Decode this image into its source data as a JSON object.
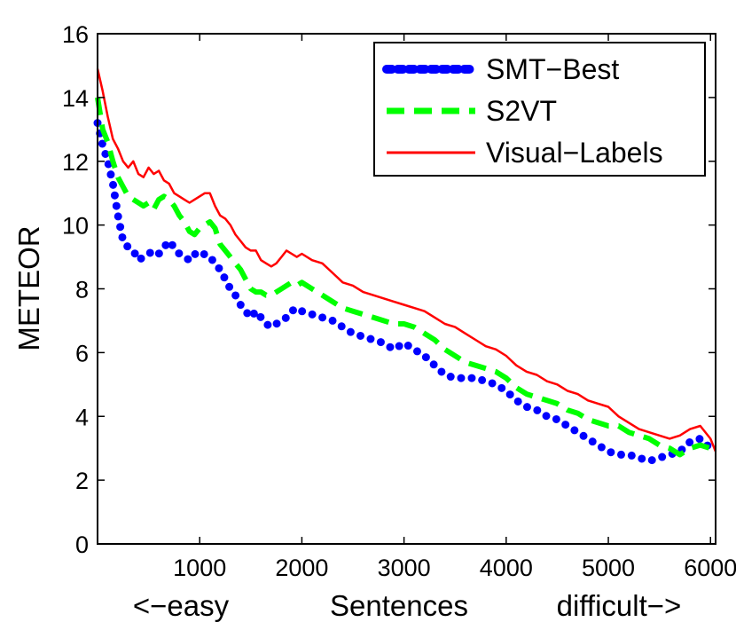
{
  "chart_data": {
    "type": "line",
    "xlabel": "Sentences",
    "xlabel_left": "<−easy",
    "xlabel_right": "difficult−>",
    "ylabel": "METEOR",
    "xlim": [
      0,
      6050
    ],
    "ylim": [
      0,
      16
    ],
    "xticks": [
      1000,
      2000,
      3000,
      4000,
      5000,
      6000
    ],
    "xtick_labels": [
      "1000",
      "2000",
      "3000",
      "4000",
      "5000",
      "6000"
    ],
    "yticks": [
      0,
      2,
      4,
      6,
      8,
      10,
      12,
      14,
      16
    ],
    "ytick_labels": [
      "0",
      "2",
      "4",
      "6",
      "8",
      "10",
      "12",
      "14",
      "16"
    ],
    "grid": false,
    "legend_position": "top-right",
    "series": [
      {
        "name": "SMT−Best",
        "color": "#0000ff",
        "style": "dotted",
        "x": [
          0,
          50,
          100,
          150,
          200,
          250,
          300,
          350,
          400,
          450,
          500,
          550,
          600,
          650,
          700,
          750,
          800,
          850,
          900,
          950,
          1000,
          1050,
          1100,
          1150,
          1200,
          1250,
          1300,
          1350,
          1400,
          1450,
          1500,
          1550,
          1600,
          1650,
          1700,
          1750,
          1800,
          1850,
          1900,
          1950,
          2000,
          2100,
          2200,
          2300,
          2400,
          2500,
          2600,
          2700,
          2800,
          2900,
          3000,
          3100,
          3200,
          3300,
          3400,
          3500,
          3600,
          3700,
          3800,
          3900,
          4000,
          4100,
          4200,
          4300,
          4400,
          4500,
          4600,
          4700,
          4800,
          4900,
          5000,
          5100,
          5200,
          5300,
          5400,
          5500,
          5600,
          5700,
          5800,
          5900,
          6000,
          6050
        ],
        "y": [
          13.2,
          12.5,
          12.0,
          11.3,
          10.3,
          9.5,
          9.3,
          9.2,
          8.9,
          9.0,
          9.1,
          9.2,
          9.1,
          9.3,
          9.5,
          9.3,
          9.1,
          9.0,
          8.9,
          9.1,
          9.0,
          9.1,
          9.0,
          8.8,
          8.6,
          8.3,
          8.0,
          7.8,
          7.5,
          7.3,
          7.1,
          7.3,
          7.1,
          6.9,
          6.8,
          6.9,
          7.0,
          7.1,
          7.3,
          7.4,
          7.3,
          7.2,
          7.1,
          7.0,
          6.8,
          6.6,
          6.5,
          6.4,
          6.3,
          6.1,
          6.3,
          6.1,
          5.9,
          5.6,
          5.3,
          5.2,
          5.2,
          5.2,
          5.1,
          5.0,
          4.8,
          4.5,
          4.3,
          4.2,
          4.0,
          3.9,
          3.7,
          3.5,
          3.3,
          3.1,
          2.9,
          2.8,
          2.8,
          2.7,
          2.6,
          2.7,
          2.8,
          2.9,
          3.2,
          3.3,
          3.0,
          2.9
        ]
      },
      {
        "name": "S2VT",
        "color": "#00ff00",
        "style": "dashed",
        "x": [
          0,
          50,
          100,
          150,
          200,
          250,
          300,
          350,
          400,
          450,
          500,
          550,
          600,
          650,
          700,
          750,
          800,
          850,
          900,
          950,
          1000,
          1050,
          1100,
          1150,
          1200,
          1250,
          1300,
          1350,
          1400,
          1450,
          1500,
          1550,
          1600,
          1650,
          1700,
          1750,
          1800,
          1850,
          1900,
          1950,
          2000,
          2100,
          2200,
          2300,
          2400,
          2500,
          2600,
          2700,
          2800,
          2900,
          3000,
          3100,
          3200,
          3300,
          3400,
          3500,
          3600,
          3700,
          3800,
          3900,
          4000,
          4100,
          4200,
          4300,
          4400,
          4500,
          4600,
          4700,
          4800,
          4900,
          5000,
          5100,
          5200,
          5300,
          5400,
          5500,
          5600,
          5700,
          5800,
          5900,
          6000,
          6050
        ],
        "y": [
          14.0,
          13.0,
          12.6,
          12.0,
          11.5,
          11.2,
          10.9,
          10.8,
          10.7,
          10.6,
          10.7,
          10.5,
          10.8,
          10.9,
          10.8,
          10.6,
          10.3,
          10.1,
          9.8,
          9.7,
          9.9,
          10.0,
          10.1,
          9.9,
          9.4,
          9.2,
          9.0,
          8.8,
          8.6,
          8.3,
          8.0,
          7.9,
          7.9,
          7.8,
          7.8,
          7.9,
          8.0,
          8.1,
          8.2,
          8.1,
          8.2,
          8.0,
          7.8,
          7.6,
          7.4,
          7.3,
          7.2,
          7.1,
          7.0,
          6.9,
          6.9,
          6.8,
          6.6,
          6.4,
          6.1,
          5.9,
          5.7,
          5.6,
          5.5,
          5.4,
          5.2,
          4.9,
          4.7,
          4.6,
          4.5,
          4.4,
          4.2,
          4.1,
          3.9,
          3.8,
          3.7,
          3.7,
          3.5,
          3.4,
          3.3,
          3.1,
          3.0,
          2.8,
          3.0,
          3.1,
          3.0,
          2.9
        ]
      },
      {
        "name": "Visual−Labels",
        "color": "#ff0000",
        "style": "solid",
        "x": [
          0,
          50,
          100,
          150,
          200,
          250,
          300,
          350,
          400,
          450,
          500,
          550,
          600,
          650,
          700,
          750,
          800,
          850,
          900,
          950,
          1000,
          1050,
          1100,
          1150,
          1200,
          1250,
          1300,
          1350,
          1400,
          1450,
          1500,
          1550,
          1600,
          1650,
          1700,
          1750,
          1800,
          1850,
          1900,
          1950,
          2000,
          2100,
          2200,
          2300,
          2400,
          2500,
          2600,
          2700,
          2800,
          2900,
          3000,
          3100,
          3200,
          3300,
          3400,
          3500,
          3600,
          3700,
          3800,
          3900,
          4000,
          4100,
          4200,
          4300,
          4400,
          4500,
          4600,
          4700,
          4800,
          4900,
          5000,
          5100,
          5200,
          5300,
          5400,
          5500,
          5600,
          5700,
          5800,
          5900,
          6000,
          6050
        ],
        "y": [
          14.9,
          14.2,
          13.4,
          12.7,
          12.4,
          12.0,
          11.8,
          12.0,
          11.6,
          11.5,
          11.8,
          11.6,
          11.7,
          11.4,
          11.3,
          11.0,
          10.9,
          10.8,
          10.7,
          10.8,
          10.9,
          11.0,
          11.0,
          10.6,
          10.3,
          10.2,
          10.0,
          9.7,
          9.5,
          9.3,
          9.2,
          9.2,
          8.9,
          8.8,
          8.7,
          8.8,
          9.0,
          9.2,
          9.1,
          9.0,
          9.1,
          8.9,
          8.8,
          8.5,
          8.2,
          8.1,
          7.9,
          7.8,
          7.7,
          7.6,
          7.5,
          7.4,
          7.3,
          7.1,
          6.9,
          6.8,
          6.6,
          6.4,
          6.2,
          6.1,
          5.9,
          5.6,
          5.4,
          5.3,
          5.1,
          5.0,
          4.8,
          4.7,
          4.5,
          4.4,
          4.3,
          4.0,
          3.8,
          3.6,
          3.5,
          3.4,
          3.3,
          3.4,
          3.6,
          3.7,
          3.3,
          2.9
        ]
      }
    ]
  }
}
